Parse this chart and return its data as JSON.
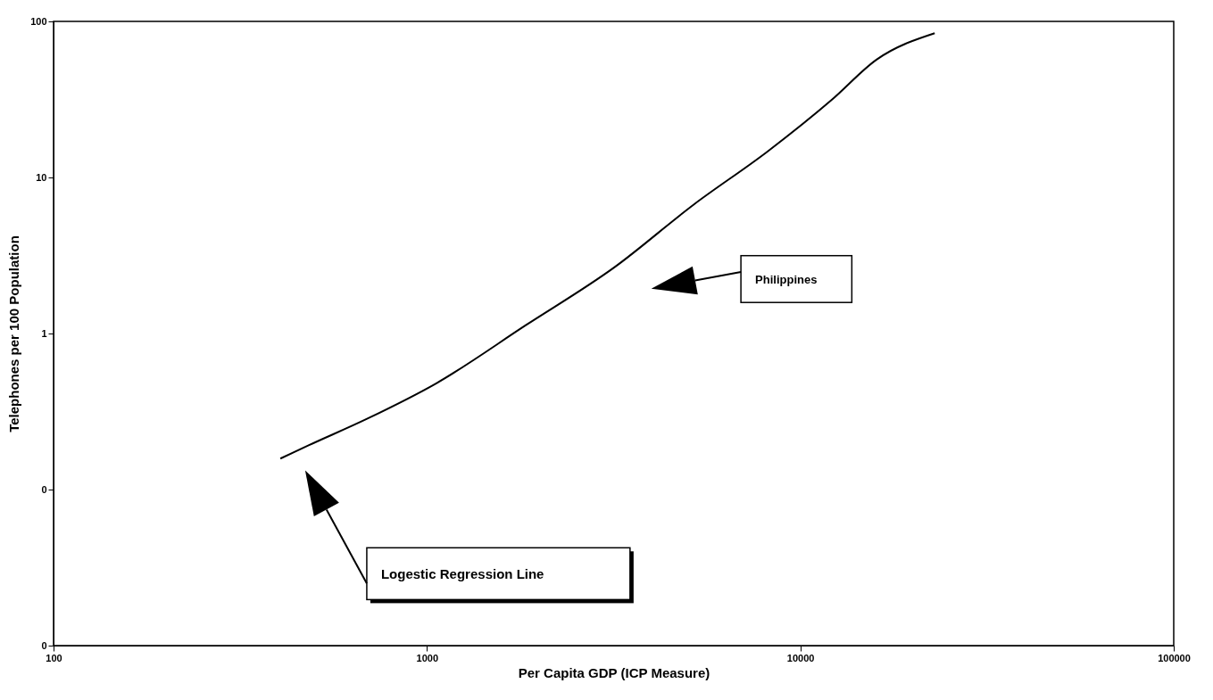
{
  "chart_data": {
    "type": "line",
    "xlabel": "Per Capita GDP (ICP Measure)",
    "ylabel": "Telephones per 100 Population",
    "log": "xy",
    "grid": false,
    "marker": "none",
    "line_style": "solid",
    "xlim": [
      100,
      100000
    ],
    "xticks": [
      100,
      1000,
      10000,
      100000
    ],
    "ylim": [
      0.01,
      100
    ],
    "yticks": [
      {
        "value": 0.01,
        "label": "0"
      },
      {
        "value": 0.1,
        "label": "0"
      },
      1,
      10,
      100
    ],
    "series": [
      {
        "color": "#000000",
        "x": [
          405,
          482,
          693,
          1060,
          1840,
          3180,
          5180,
          8180,
          12150,
          16000,
          22900
        ],
        "values": [
          0.158,
          0.192,
          0.285,
          0.48,
          1.13,
          2.66,
          6.7,
          14.7,
          31.5,
          56.9,
          84
        ]
      }
    ],
    "annotations": [
      "Philippines",
      "Logestic Regression Line"
    ]
  }
}
